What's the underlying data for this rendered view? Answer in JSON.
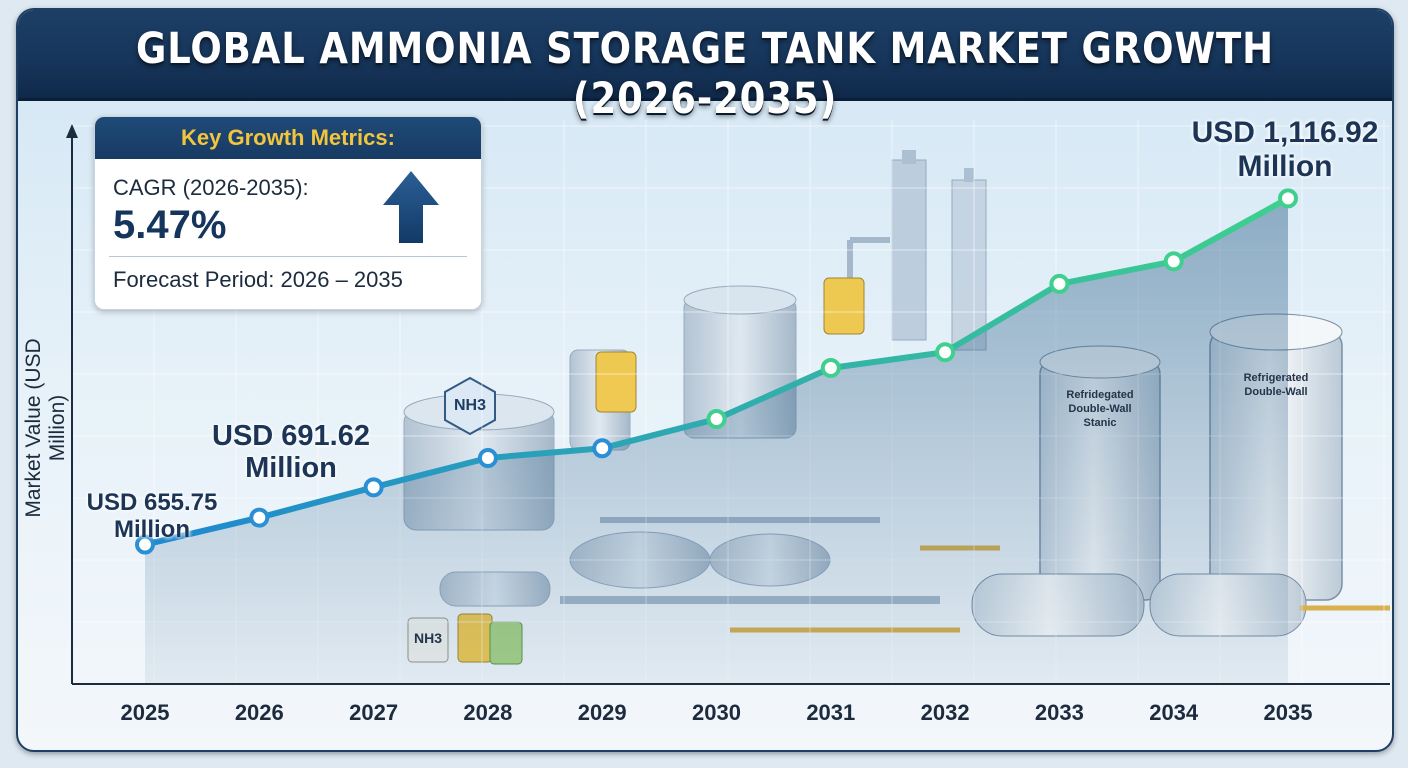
{
  "title": "GLOBAL AMMONIA STORAGE TANK MARKET GROWTH (2026-2035)",
  "metrics": {
    "heading": "Key Growth Metrics:",
    "cagr_label": "CAGR (2026-2035):",
    "cagr_value": "5.47%",
    "forecast": "Forecast Period: 2026 – 2035"
  },
  "annotations": {
    "start": [
      "USD 655.75",
      "Million"
    ],
    "mid": [
      "USD 691.62",
      "Million"
    ],
    "end": [
      "USD 1,116.92",
      "Million"
    ]
  },
  "illustration": {
    "chem_label_1": "NH3",
    "chem_label_2": "NH3",
    "tank_left": [
      "Refridegated",
      "Double-Wall",
      "Stanic"
    ],
    "tank_right": [
      "Refrigerated",
      "Double-Wall"
    ]
  },
  "colors": {
    "banner": "#16355a",
    "line_start": "#1e88d0",
    "line_end": "#3fcf8e",
    "accent_gold": "#f2c53d"
  },
  "chart_data": {
    "type": "line",
    "title": "GLOBAL AMMONIA STORAGE TANK MARKET GROWTH (2026-2035)",
    "xlabel": "",
    "ylabel": "Market Value (USD Million)",
    "categories": [
      "2025",
      "2026",
      "2027",
      "2028",
      "2029",
      "2030",
      "2031",
      "2032",
      "2033",
      "2034",
      "2035"
    ],
    "series": [
      {
        "values": [
          655.75,
          691.62,
          732,
          771,
          784,
          823,
          891,
          912,
          1003,
          1033,
          1116.92
        ]
      }
    ],
    "ylim": [
      470,
      1200
    ],
    "grid": true,
    "legend": "none"
  }
}
